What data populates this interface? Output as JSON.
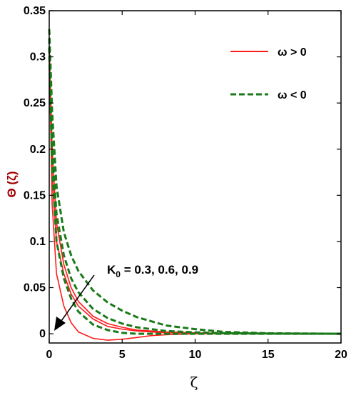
{
  "chart_data": {
    "type": "line",
    "xlabel": "ζ",
    "ylabel": "Θ (ζ)",
    "xlim": [
      0,
      20
    ],
    "ylim": [
      -0.01,
      0.35
    ],
    "x_ticks": [
      "0",
      "5",
      "10",
      "15",
      "20"
    ],
    "y_ticks": [
      "0",
      "0.05",
      "0.1",
      "0.15",
      "0.2",
      "0.25",
      "0.3",
      "0.35"
    ],
    "grid": false,
    "legend_position": "top-right",
    "legend": [
      {
        "label": "ω > 0",
        "color": "#ff1a1a",
        "style": "solid"
      },
      {
        "label": "ω < 0",
        "color": "#1a7a1a",
        "style": "dashed"
      }
    ],
    "annotation": {
      "prefix": "K",
      "subscript": "0",
      "text": " = 0.3, 0.6, 0.9"
    },
    "series": [
      {
        "group": "ω > 0",
        "K0": 0.3,
        "color": "#ff1a1a",
        "style": "solid",
        "x": [
          0,
          0.2,
          0.5,
          1,
          1.5,
          2,
          3,
          4,
          5,
          6,
          8,
          10,
          12,
          15,
          20
        ],
        "y": [
          0.31,
          0.2,
          0.12,
          0.075,
          0.05,
          0.035,
          0.019,
          0.011,
          0.007,
          0.004,
          0.002,
          0.001,
          0.0005,
          0.0002,
          0
        ]
      },
      {
        "group": "ω > 0",
        "K0": 0.6,
        "color": "#ff1a1a",
        "style": "solid",
        "x": [
          0,
          0.2,
          0.5,
          1,
          1.5,
          2,
          3,
          4,
          5,
          6,
          8,
          10,
          12,
          15,
          20
        ],
        "y": [
          0.3,
          0.17,
          0.1,
          0.065,
          0.043,
          0.03,
          0.016,
          0.008,
          0.005,
          0.003,
          0.001,
          0.0005,
          0.0002,
          0.0001,
          0
        ]
      },
      {
        "group": "ω > 0",
        "K0": 0.9,
        "color": "#ff1a1a",
        "style": "solid",
        "x": [
          0,
          0.2,
          0.5,
          1,
          1.5,
          2,
          3,
          4,
          5,
          6,
          7,
          8,
          10,
          12,
          15,
          20
        ],
        "y": [
          0.31,
          0.14,
          0.065,
          0.03,
          0.012,
          0.002,
          -0.005,
          -0.007,
          -0.006,
          -0.004,
          -0.002,
          -0.001,
          0.0,
          0.0,
          0.0,
          0
        ]
      },
      {
        "group": "ω < 0",
        "K0": 0.3,
        "color": "#1a7a1a",
        "style": "dashed",
        "x": [
          0,
          0.2,
          0.5,
          1,
          1.5,
          2,
          3,
          4,
          5,
          6,
          8,
          10,
          12,
          15,
          20
        ],
        "y": [
          0.33,
          0.24,
          0.16,
          0.11,
          0.085,
          0.068,
          0.047,
          0.034,
          0.025,
          0.018,
          0.009,
          0.005,
          0.002,
          0.0005,
          0
        ]
      },
      {
        "group": "ω < 0",
        "K0": 0.6,
        "color": "#1a7a1a",
        "style": "dashed",
        "x": [
          0,
          0.2,
          0.5,
          1,
          1.5,
          2,
          3,
          4,
          5,
          6,
          8,
          10,
          12,
          15,
          20
        ],
        "y": [
          0.32,
          0.2,
          0.13,
          0.085,
          0.06,
          0.045,
          0.027,
          0.017,
          0.011,
          0.007,
          0.003,
          0.0015,
          0.0006,
          0.0002,
          0
        ]
      },
      {
        "group": "ω < 0",
        "K0": 0.9,
        "color": "#1a7a1a",
        "style": "dashed",
        "x": [
          0,
          0.2,
          0.5,
          1,
          1.5,
          2,
          3,
          4,
          5,
          6,
          8,
          10,
          12,
          15,
          20
        ],
        "y": [
          0.31,
          0.18,
          0.1,
          0.06,
          0.038,
          0.024,
          0.01,
          0.004,
          0.001,
          0.0,
          0.0,
          0.0,
          0.0,
          0.0,
          0
        ]
      }
    ]
  }
}
